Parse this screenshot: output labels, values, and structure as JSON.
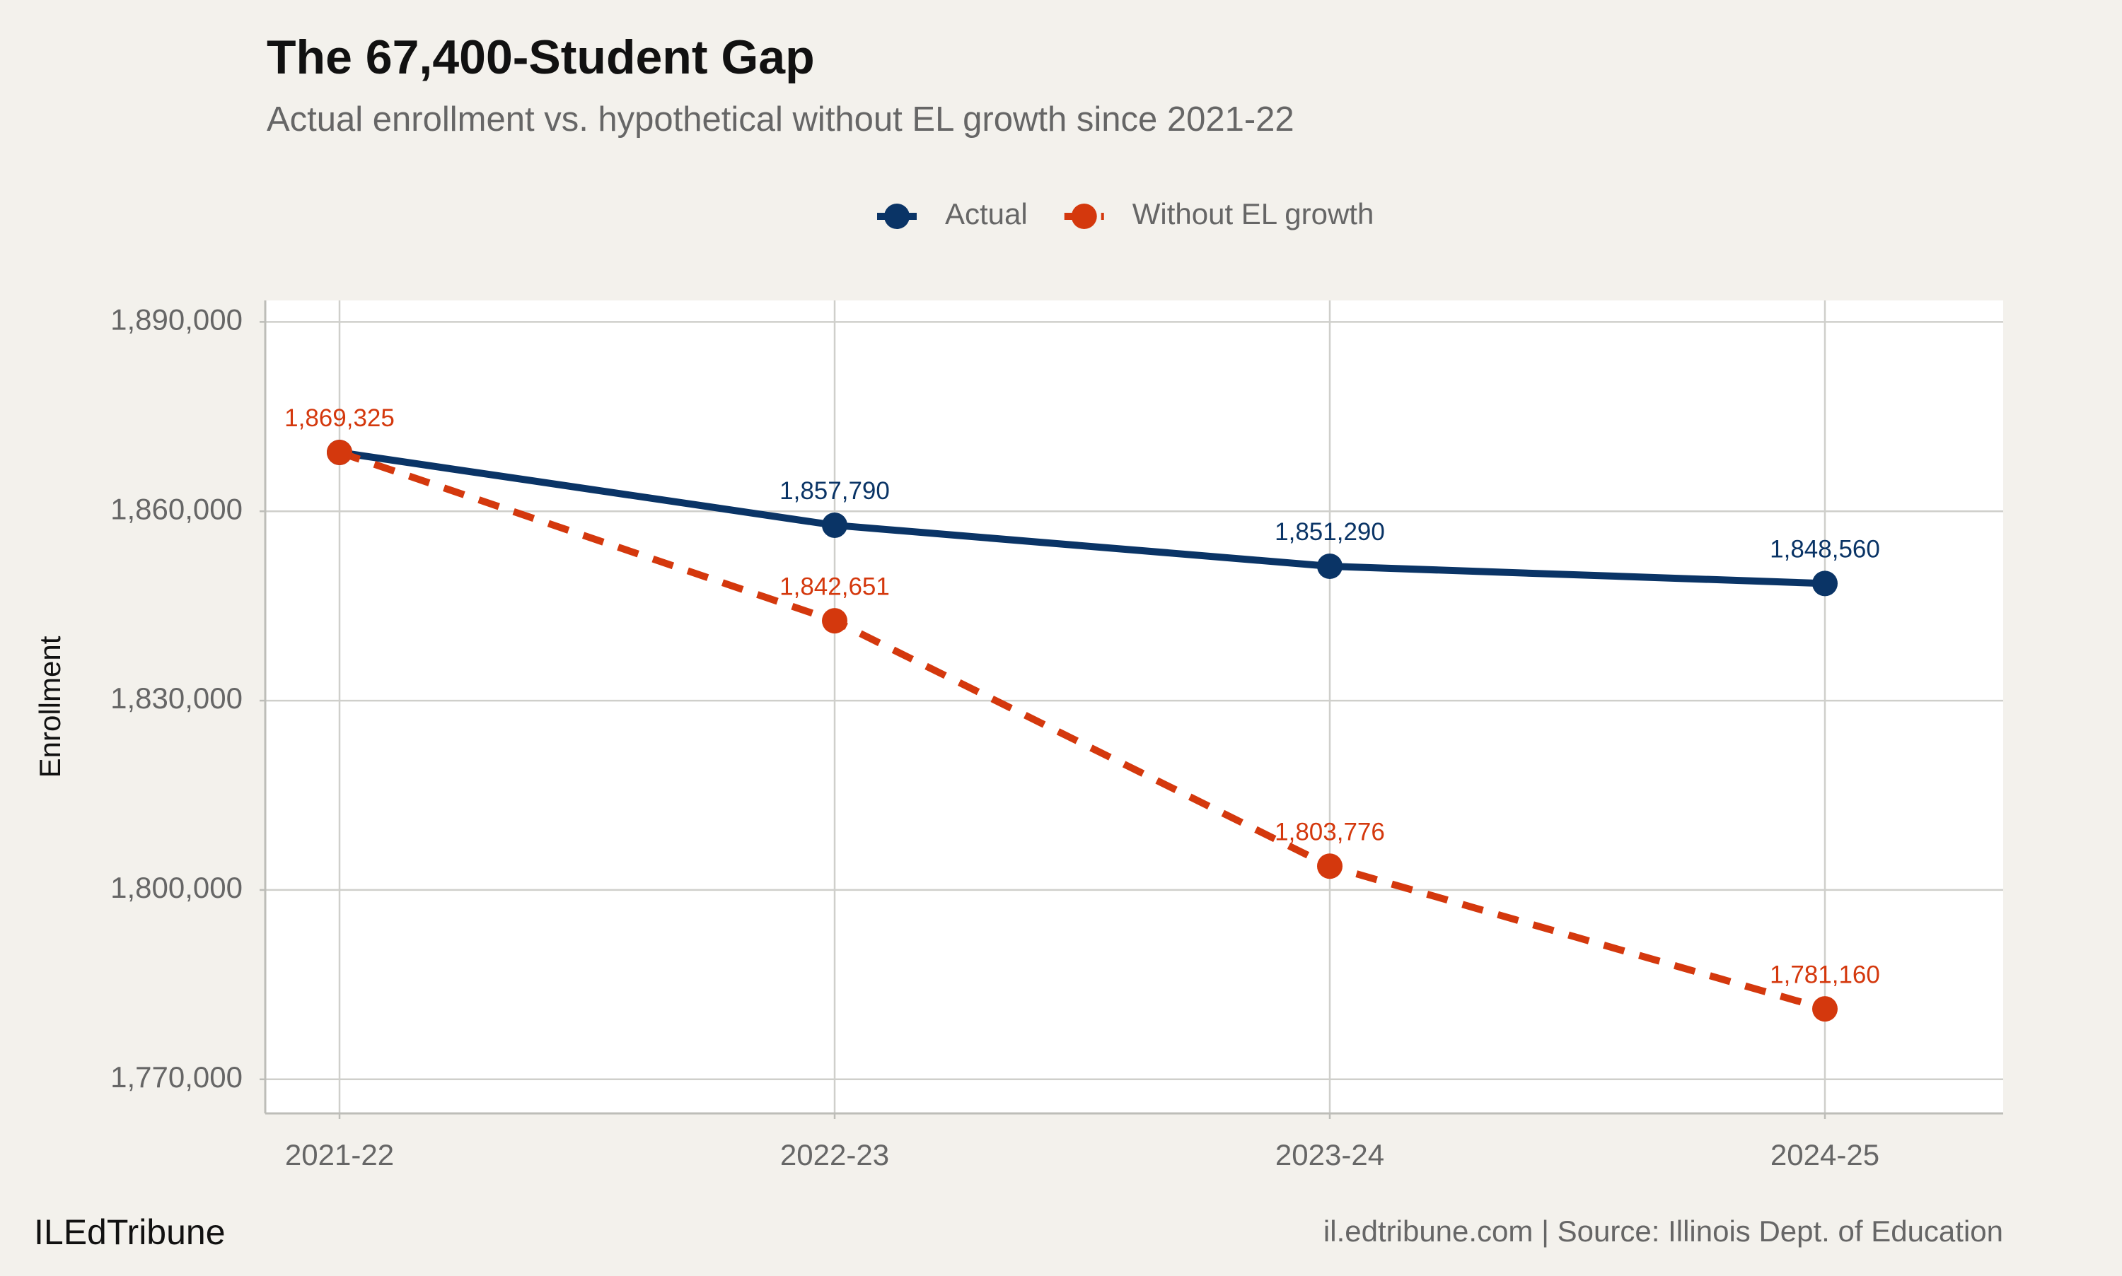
{
  "chart_data": {
    "type": "line",
    "title": "The 67,400-Student Gap",
    "subtitle": "Actual enrollment vs. hypothetical without EL growth since 2021-22",
    "y_label": "Enrollment",
    "categories": [
      "2021-22",
      "2022-23",
      "2023-24",
      "2024-25"
    ],
    "series": [
      {
        "name": "Actual",
        "color": "#0a3466",
        "dashed": false,
        "values": [
          1869325,
          1857790,
          1851290,
          1848560
        ],
        "value_labels": [
          null,
          "1,857,790",
          "1,851,290",
          "1,848,560"
        ]
      },
      {
        "name": "Without EL growth",
        "color": "#d4380d",
        "dashed": true,
        "values": [
          1869325,
          1842651,
          1803776,
          1781160
        ],
        "value_labels": [
          "1,869,325",
          "1,842,651",
          "1,803,776",
          "1,781,160"
        ]
      }
    ],
    "ylim": [
      1764600,
      1893400
    ],
    "yticks": [
      {
        "value": 1770000,
        "label": "1,770,000"
      },
      {
        "value": 1800000,
        "label": "1,800,000"
      },
      {
        "value": 1830000,
        "label": "1,830,000"
      },
      {
        "value": 1860000,
        "label": "1,860,000"
      },
      {
        "value": 1890000,
        "label": "1,890,000"
      }
    ],
    "grid": true,
    "legend": "top",
    "footer_left": "ILEdTribune",
    "footer_right": "il.edtribune.com | Source: Illinois Dept. of Education"
  }
}
